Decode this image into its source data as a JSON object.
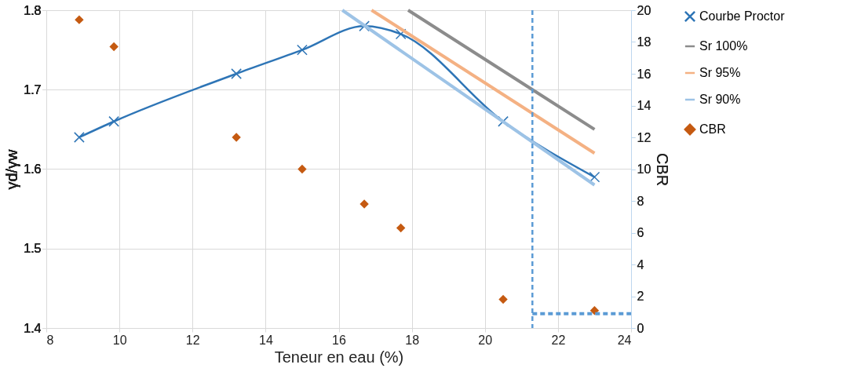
{
  "chart_data": {
    "type": "line",
    "xlabel": "Teneur en eau (%)",
    "ylabel": "γd/γw",
    "y2label": "CBR",
    "xlim": [
      8,
      24
    ],
    "xticks": [
      8,
      10,
      12,
      14,
      16,
      18,
      20,
      22,
      24
    ],
    "ylim": [
      1.4,
      1.8
    ],
    "yticks": [
      1.4,
      1.5,
      1.6,
      1.7,
      1.8
    ],
    "y2lim": [
      0,
      20
    ],
    "y2ticks": [
      0,
      2,
      4,
      6,
      8,
      10,
      12,
      14,
      16,
      18,
      20
    ],
    "grid": true,
    "legend": "right",
    "series": [
      {
        "name": "Courbe Proctor",
        "color": "#2e75b6",
        "marker": "cross",
        "line_style": "solid",
        "x": [
          8.9,
          9.85,
          13.2,
          15,
          16.7,
          17.7,
          20.5,
          23
        ],
        "values": [
          1.64,
          1.66,
          1.72,
          1.75,
          1.78,
          1.77,
          1.66,
          1.59
        ]
      },
      {
        "name": "Sr 100%",
        "color": "#8c8c8c",
        "marker": "none",
        "line_style": "solid",
        "x": [
          17.9,
          21.3,
          23
        ],
        "values": [
          1.8,
          1.7,
          1.65
        ]
      },
      {
        "name": "Sr 95%",
        "color": "#f4b183",
        "marker": "none",
        "line_style": "solid",
        "x": [
          16.9,
          23
        ],
        "values": [
          1.8,
          1.62
        ]
      },
      {
        "name": "Sr 90%",
        "color": "#9dc3e6",
        "marker": "none",
        "line_style": "solid",
        "x": [
          16.1,
          23
        ],
        "values": [
          1.8,
          1.58
        ]
      },
      {
        "name": "CBR",
        "type": "scatter",
        "color": "#c55a11",
        "marker": "diamond",
        "axis": "y2",
        "x": [
          8.9,
          9.85,
          13.2,
          15,
          16.7,
          17.7,
          20.5,
          23
        ],
        "values": [
          19.4,
          17.7,
          12.0,
          10.0,
          7.8,
          6.3,
          1.8,
          1.1
        ]
      },
      {
        "color": "#5b9bd5",
        "line_style": "dashed",
        "marker": "none",
        "axis": "y2",
        "x": [
          21.3,
          24
        ],
        "values": [
          0.9,
          0.9
        ]
      }
    ],
    "ref_lines": [
      {
        "axis": "x",
        "value": 21.3,
        "color": "#5b9bd5",
        "line_style": "dashed"
      }
    ]
  }
}
